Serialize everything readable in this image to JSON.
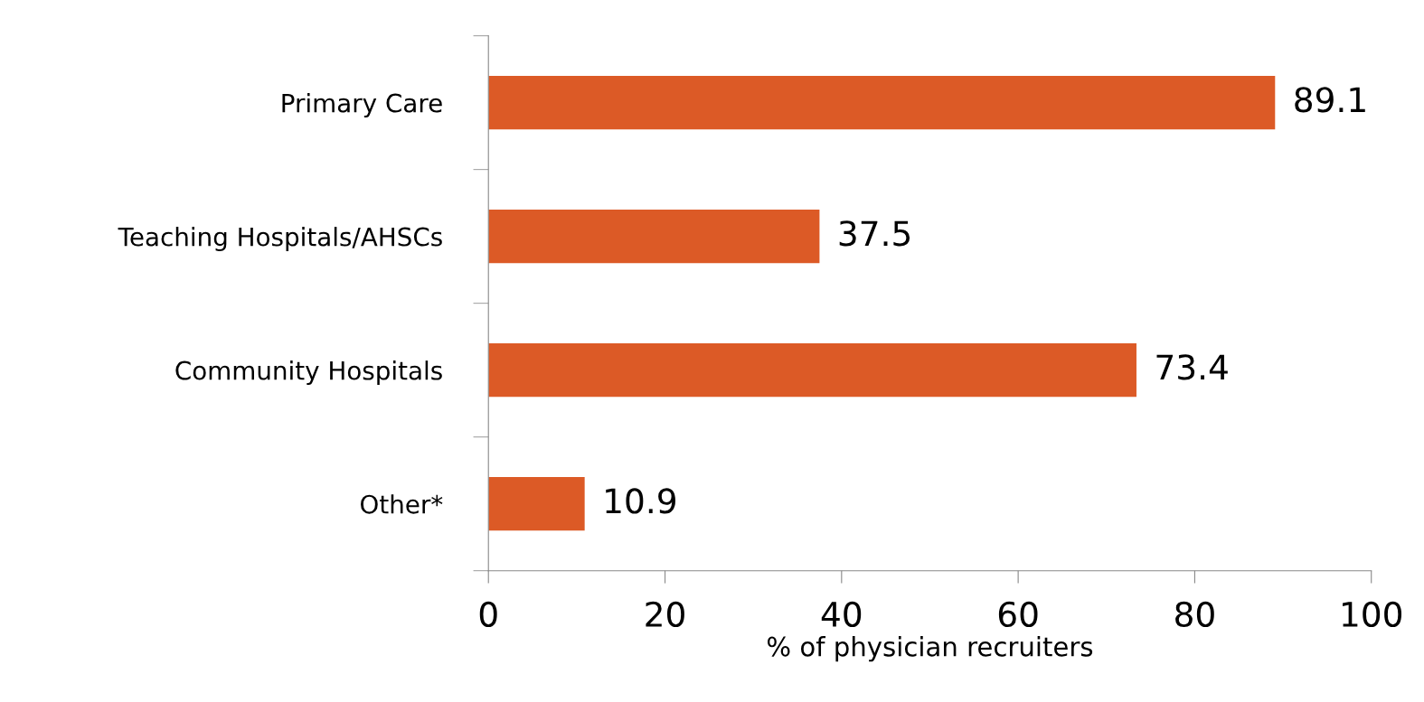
{
  "chart_data": {
    "type": "bar",
    "orientation": "horizontal",
    "xlabel": "% of physician recruiters",
    "categories": [
      "Primary Care",
      "Teaching Hospitals/AHSCs",
      "Community Hospitals",
      "Other*"
    ],
    "values": [
      89.1,
      37.5,
      73.4,
      10.9
    ],
    "color": "#dc5a26",
    "xlim": [
      0,
      100
    ],
    "xticks": [
      0,
      20,
      40,
      60,
      80,
      100
    ],
    "grid": false,
    "data_labels": true
  }
}
